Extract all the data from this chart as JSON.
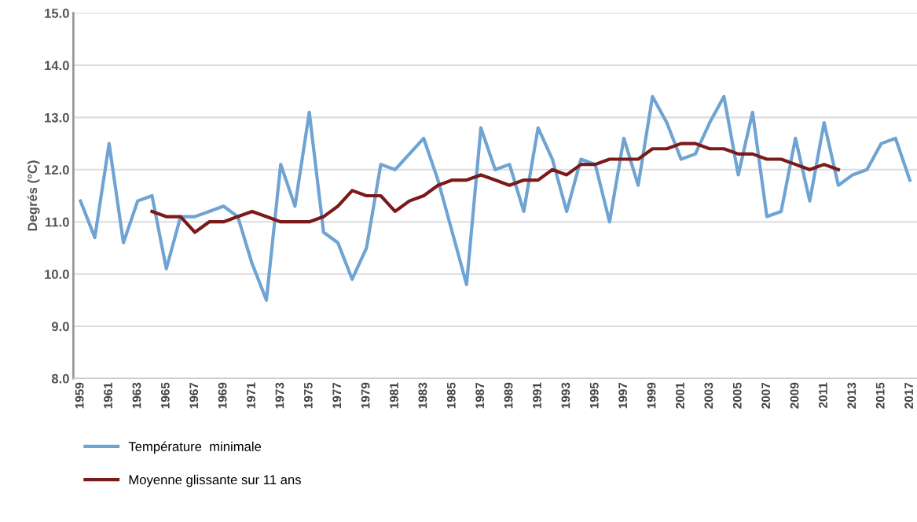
{
  "chart_data": {
    "type": "line",
    "ylabel": "Degrés (°C)",
    "categories": [
      "1959",
      null,
      "1961",
      null,
      "1963",
      null,
      "1965",
      null,
      "1967",
      null,
      "1969",
      null,
      "1971",
      null,
      "1973",
      null,
      "1975",
      null,
      "1977",
      null,
      "1979",
      null,
      "1981",
      null,
      "1983",
      null,
      "1985",
      null,
      "1987",
      null,
      "1989",
      null,
      "1991",
      null,
      "1993",
      null,
      "1995",
      null,
      "1997",
      null,
      "1999",
      null,
      "2001",
      null,
      "2003",
      null,
      "2005",
      null,
      "2007",
      null,
      "2009",
      null,
      "2011",
      null,
      "2013",
      null,
      "2015",
      null,
      "2017"
    ],
    "series": [
      {
        "name": "Température  minimale",
        "color": "#6fa3d2",
        "values": [
          11.4,
          10.7,
          12.5,
          10.6,
          11.4,
          11.5,
          10.1,
          11.1,
          11.1,
          11.2,
          11.3,
          11.1,
          10.2,
          9.5,
          12.1,
          11.3,
          13.1,
          10.8,
          10.6,
          9.9,
          10.5,
          12.1,
          12.0,
          12.3,
          12.6,
          11.8,
          10.8,
          9.8,
          12.8,
          12.0,
          12.1,
          11.2,
          12.8,
          12.2,
          11.2,
          12.2,
          12.1,
          11.0,
          12.6,
          11.7,
          13.4,
          12.9,
          12.2,
          12.3,
          12.9,
          13.4,
          11.9,
          13.1,
          11.1,
          11.2,
          12.6,
          11.4,
          12.9,
          11.7,
          11.9,
          12.0,
          12.5,
          12.6,
          11.8
        ]
      },
      {
        "name": "Moyenne glissante sur 11 ans",
        "color": "#7b1a1a",
        "values": [
          null,
          null,
          null,
          null,
          null,
          11.2,
          11.1,
          11.1,
          10.8,
          11.0,
          11.0,
          11.1,
          11.2,
          11.1,
          11.0,
          11.0,
          11.0,
          11.1,
          11.3,
          11.6,
          11.5,
          11.5,
          11.2,
          11.4,
          11.5,
          11.7,
          11.8,
          11.8,
          11.9,
          11.8,
          11.7,
          11.8,
          11.8,
          12.0,
          11.9,
          12.1,
          12.1,
          12.2,
          12.2,
          12.2,
          12.4,
          12.4,
          12.5,
          12.5,
          12.4,
          12.4,
          12.3,
          12.3,
          12.2,
          12.2,
          12.1,
          12.0,
          12.1,
          12.0,
          null,
          null,
          null,
          null,
          null
        ]
      }
    ],
    "ylim": [
      8,
      15
    ],
    "yticks": [
      {
        "value": 8,
        "label": "8.0"
      },
      {
        "value": 9,
        "label": "9.0"
      },
      {
        "value": 10,
        "label": "10.0"
      },
      {
        "value": 11,
        "label": "11.0"
      },
      {
        "value": 12,
        "label": "12.0"
      },
      {
        "value": 13,
        "label": "13.0"
      },
      {
        "value": 14,
        "label": "14.0"
      },
      {
        "value": 15,
        "label": "15.0"
      }
    ],
    "grid": "y",
    "legend": "bottom left",
    "marker": "none",
    "line_style": "solid"
  }
}
